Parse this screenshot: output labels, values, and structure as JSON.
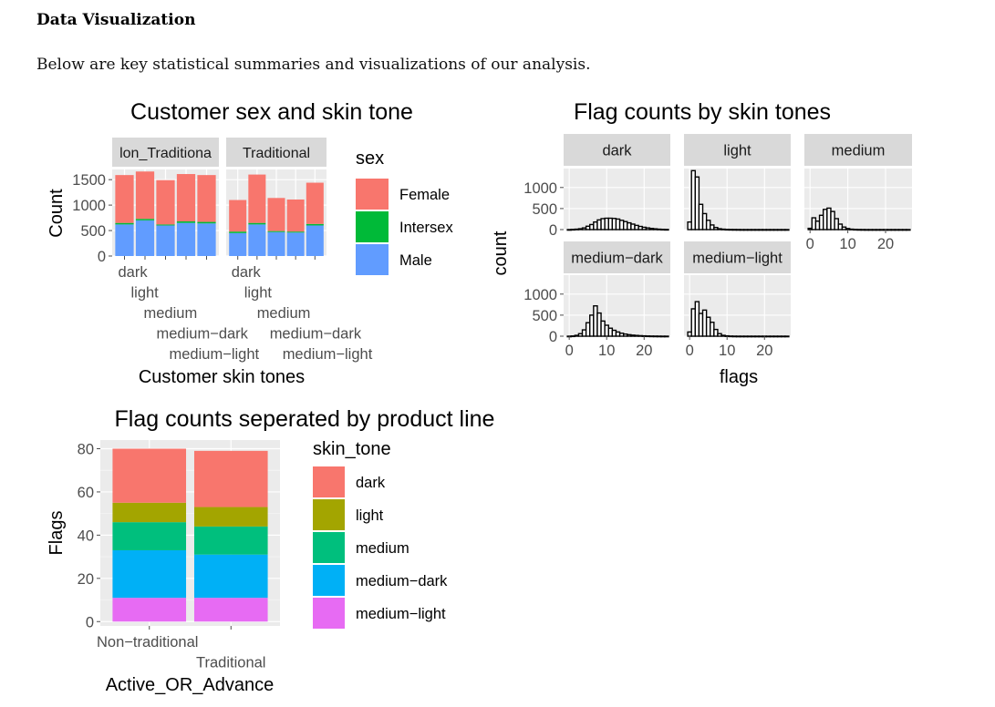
{
  "page": {
    "heading": "Data Visualization",
    "intro": "Below are key statistical summaries and visualizations of our analysis."
  },
  "chart_data": [
    {
      "type": "bar",
      "stacked": true,
      "title": "Customer sex and skin tone",
      "xlabel": "Customer skin tones",
      "ylabel": "Count",
      "ylim": [
        0,
        1700
      ],
      "yticks": [
        0,
        500,
        1000,
        1500
      ],
      "ytick_labels": [
        "0",
        "500",
        "1000",
        "1500"
      ],
      "facets": [
        "lon_Traditiona",
        "Traditional"
      ],
      "categories": [
        "dark",
        "light",
        "medium",
        "medium−dark",
        "medium−light"
      ],
      "legend": {
        "title": "sex",
        "position": "right"
      },
      "series": [
        {
          "name": "Female",
          "color": "#F8766D",
          "values": [
            [
              940,
              930,
              870,
              930,
              920
            ],
            [
              620,
              950,
              650,
              630,
              810
            ]
          ]
        },
        {
          "name": "Intersex",
          "color": "#00BA38",
          "values": [
            [
              30,
              30,
              20,
              30,
              30
            ],
            [
              30,
              30,
              20,
              20,
              30
            ]
          ]
        },
        {
          "name": "Male",
          "color": "#619CFF",
          "values": [
            [
              620,
              700,
              600,
              650,
              640
            ],
            [
              450,
              620,
              470,
              460,
              600
            ]
          ]
        }
      ],
      "grid": true
    },
    {
      "type": "histogram",
      "title": "Flag counts by skin tones",
      "xlabel": "flags",
      "ylabel": "count",
      "xlim": [
        -1.5,
        27
      ],
      "xticks": [
        0,
        10,
        20
      ],
      "xtick_labels": [
        "0",
        "10",
        "20"
      ],
      "ylim": [
        0,
        1450
      ],
      "yticks": [
        0,
        500,
        1000
      ],
      "ytick_labels": [
        "0",
        "500",
        "1000"
      ],
      "bin_start": -0.5,
      "bin_width": 1,
      "panels": [
        {
          "label": "dark",
          "counts": [
            0,
            5,
            10,
            20,
            40,
            80,
            120,
            180,
            230,
            260,
            270,
            270,
            265,
            250,
            220,
            190,
            160,
            130,
            100,
            75,
            55,
            40,
            28,
            18,
            10,
            6,
            3
          ]
        },
        {
          "label": "light",
          "counts": [
            180,
            1400,
            1250,
            600,
            380,
            220,
            110,
            50,
            20,
            10,
            5,
            3,
            2,
            1,
            0,
            0,
            0,
            0,
            0,
            0,
            0,
            0,
            0,
            0,
            0,
            0,
            0
          ]
        },
        {
          "label": "medium",
          "counts": [
            30,
            280,
            200,
            340,
            480,
            510,
            430,
            260,
            130,
            60,
            25,
            10,
            5,
            2,
            1,
            0,
            0,
            0,
            0,
            0,
            0,
            0,
            0,
            0,
            0,
            0,
            0
          ]
        },
        {
          "label": "medium−dark",
          "counts": [
            0,
            5,
            20,
            60,
            150,
            320,
            500,
            720,
            550,
            360,
            260,
            190,
            140,
            100,
            70,
            50,
            35,
            25,
            18,
            12,
            8,
            5,
            3,
            2,
            1,
            0,
            0
          ]
        },
        {
          "label": "medium−light",
          "counts": [
            100,
            650,
            820,
            540,
            620,
            450,
            330,
            160,
            60,
            20,
            8,
            3,
            1,
            0,
            0,
            0,
            0,
            0,
            0,
            0,
            0,
            0,
            0,
            0,
            0,
            0,
            0
          ]
        }
      ],
      "grid": true
    },
    {
      "type": "bar",
      "stacked": true,
      "title": "Flag counts seperated by product line",
      "xlabel": "Active_OR_Advance",
      "ylabel": "Flags",
      "ylim": [
        -2,
        84
      ],
      "yticks": [
        0,
        20,
        40,
        60,
        80
      ],
      "ytick_labels": [
        "0",
        "20",
        "40",
        "60",
        "80"
      ],
      "categories": [
        "Non−traditional",
        "Traditional"
      ],
      "legend": {
        "title": "skin_tone",
        "position": "right"
      },
      "series": [
        {
          "name": "medium−light",
          "color": "#E76BF3",
          "values": [
            11,
            11
          ]
        },
        {
          "name": "medium−dark",
          "color": "#00B0F6",
          "values": [
            22,
            20
          ]
        },
        {
          "name": "medium",
          "color": "#00BF7D",
          "values": [
            13,
            13
          ]
        },
        {
          "name": "light",
          "color": "#A3A500",
          "values": [
            9,
            9
          ]
        },
        {
          "name": "dark",
          "color": "#F8766D",
          "values": [
            25,
            26
          ]
        }
      ],
      "legend_order": [
        "dark",
        "light",
        "medium",
        "medium−dark",
        "medium−light"
      ],
      "grid": true
    }
  ]
}
